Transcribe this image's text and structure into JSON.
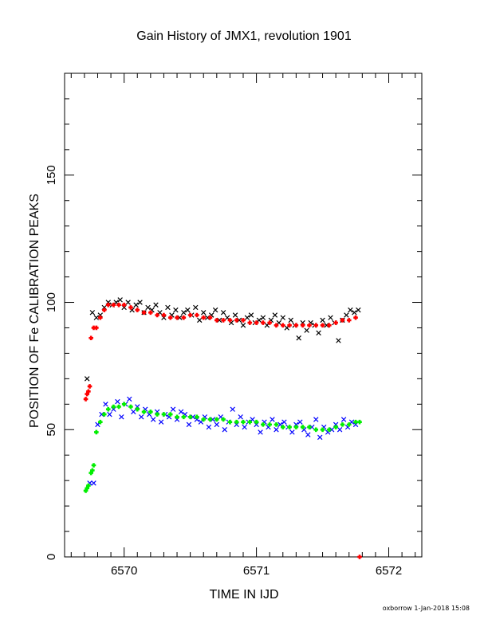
{
  "title": "Gain History of JMX1, revolution 1901",
  "footer": "oxborrow  1-Jan-2018 15:08",
  "chart_data": {
    "type": "scatter",
    "title": "Gain History of JMX1, revolution 1901",
    "xlabel": "TIME IN IJD",
    "ylabel": "POSITION OF Fe CALIBRATION PEAKS",
    "xlim": [
      6569.55,
      6572.25
    ],
    "ylim": [
      0,
      190
    ],
    "x_ticks": [
      6570,
      6571,
      6572
    ],
    "y_ticks": [
      0,
      50,
      100,
      150
    ],
    "grid": false,
    "colors": {
      "upper_raw": "#000000",
      "upper_fit": "#ff0000",
      "lower_raw": "#0000ff",
      "lower_fit": "#00ee00"
    },
    "series": [
      {
        "marker": "x",
        "color": "#000000",
        "x": [
          6569.72,
          6569.76,
          6569.79,
          6569.82,
          6569.85,
          6569.88,
          6569.91,
          6569.94,
          6569.97,
          6570.0,
          6570.03,
          6570.06,
          6570.09,
          6570.12,
          6570.15,
          6570.18,
          6570.21,
          6570.24,
          6570.27,
          6570.3,
          6570.33,
          6570.36,
          6570.39,
          6570.42,
          6570.45,
          6570.48,
          6570.51,
          6570.54,
          6570.57,
          6570.6,
          6570.63,
          6570.66,
          6570.69,
          6570.72,
          6570.75,
          6570.78,
          6570.81,
          6570.84,
          6570.87,
          6570.9,
          6570.93,
          6570.96,
          6570.99,
          6571.02,
          6571.05,
          6571.08,
          6571.11,
          6571.14,
          6571.17,
          6571.2,
          6571.23,
          6571.26,
          6571.29,
          6571.32,
          6571.35,
          6571.38,
          6571.41,
          6571.44,
          6571.47,
          6571.5,
          6571.53,
          6571.56,
          6571.59,
          6571.62,
          6571.65,
          6571.68,
          6571.71,
          6571.74,
          6571.77
        ],
        "y": [
          70,
          96,
          94,
          95,
          98,
          100,
          99,
          100,
          101,
          98,
          100,
          97,
          99,
          100,
          96,
          98,
          97,
          99,
          96,
          94,
          98,
          95,
          97,
          94,
          96,
          97,
          95,
          98,
          93,
          96,
          94,
          95,
          97,
          93,
          96,
          94,
          92,
          95,
          93,
          91,
          94,
          95,
          92,
          93,
          94,
          91,
          93,
          95,
          92,
          94,
          90,
          93,
          91,
          86,
          92,
          89,
          92,
          91,
          88,
          93,
          91,
          94,
          92,
          85,
          93,
          95,
          97,
          96,
          97
        ]
      },
      {
        "marker": "+",
        "color": "#ff0000",
        "x": [
          6569.71,
          6569.72,
          6569.73,
          6569.74,
          6569.75,
          6569.77,
          6569.79,
          6569.82,
          6569.85,
          6569.88,
          6569.92,
          6569.96,
          6570.0,
          6570.05,
          6570.1,
          6570.15,
          6570.2,
          6570.25,
          6570.3,
          6570.35,
          6570.4,
          6570.45,
          6570.5,
          6570.55,
          6570.6,
          6570.65,
          6570.7,
          6570.75,
          6570.8,
          6570.85,
          6570.9,
          6570.95,
          6571.0,
          6571.05,
          6571.1,
          6571.15,
          6571.2,
          6571.25,
          6571.3,
          6571.35,
          6571.4,
          6571.45,
          6571.5,
          6571.55,
          6571.6,
          6571.65,
          6571.7,
          6571.75,
          6571.78
        ],
        "y": [
          62,
          64,
          65,
          67,
          86,
          90,
          90,
          94,
          97,
          99,
          99,
          99,
          99,
          98,
          97,
          96,
          96,
          95,
          95,
          94,
          94,
          94,
          95,
          95,
          94,
          94,
          93,
          93,
          93,
          93,
          93,
          92,
          92,
          92,
          92,
          91,
          91,
          91,
          91,
          91,
          91,
          91,
          91,
          91,
          92,
          93,
          93,
          94,
          0
        ]
      },
      {
        "marker": "x",
        "color": "#0000ff",
        "x": [
          6569.74,
          6569.77,
          6569.8,
          6569.83,
          6569.86,
          6569.89,
          6569.92,
          6569.95,
          6569.98,
          6570.01,
          6570.04,
          6570.07,
          6570.1,
          6570.13,
          6570.16,
          6570.19,
          6570.22,
          6570.25,
          6570.28,
          6570.31,
          6570.34,
          6570.37,
          6570.4,
          6570.43,
          6570.46,
          6570.49,
          6570.52,
          6570.55,
          6570.58,
          6570.61,
          6570.64,
          6570.67,
          6570.7,
          6570.73,
          6570.76,
          6570.79,
          6570.82,
          6570.85,
          6570.88,
          6570.91,
          6570.94,
          6570.97,
          6571.0,
          6571.03,
          6571.06,
          6571.09,
          6571.12,
          6571.15,
          6571.18,
          6571.21,
          6571.24,
          6571.27,
          6571.3,
          6571.33,
          6571.36,
          6571.39,
          6571.42,
          6571.45,
          6571.48,
          6571.51,
          6571.54,
          6571.57,
          6571.6,
          6571.63,
          6571.66,
          6571.69,
          6571.72,
          6571.75
        ],
        "y": [
          29,
          29,
          52,
          56,
          60,
          56,
          58,
          61,
          55,
          60,
          62,
          57,
          59,
          55,
          58,
          56,
          54,
          57,
          53,
          56,
          55,
          58,
          54,
          57,
          56,
          52,
          55,
          54,
          53,
          55,
          51,
          54,
          52,
          55,
          50,
          53,
          58,
          52,
          55,
          51,
          53,
          54,
          52,
          49,
          53,
          51,
          54,
          50,
          52,
          53,
          51,
          49,
          52,
          53,
          50,
          48,
          51,
          54,
          47,
          51,
          49,
          50,
          52,
          50,
          54,
          51,
          53,
          52
        ]
      },
      {
        "marker": "+",
        "color": "#00ee00",
        "x": [
          6569.71,
          6569.72,
          6569.73,
          6569.75,
          6569.76,
          6569.77,
          6569.79,
          6569.82,
          6569.85,
          6569.88,
          6569.92,
          6569.96,
          6570.0,
          6570.05,
          6570.1,
          6570.15,
          6570.2,
          6570.25,
          6570.3,
          6570.35,
          6570.4,
          6570.45,
          6570.5,
          6570.55,
          6570.6,
          6570.65,
          6570.7,
          6570.75,
          6570.8,
          6570.85,
          6570.9,
          6570.95,
          6571.0,
          6571.05,
          6571.1,
          6571.15,
          6571.2,
          6571.25,
          6571.3,
          6571.35,
          6571.4,
          6571.45,
          6571.5,
          6571.55,
          6571.6,
          6571.65,
          6571.7,
          6571.75,
          6571.78
        ],
        "y": [
          26,
          27,
          28,
          33,
          34,
          36,
          49,
          53,
          56,
          58,
          59,
          59,
          60,
          59,
          58,
          57,
          57,
          56,
          56,
          56,
          55,
          55,
          55,
          55,
          54,
          54,
          54,
          54,
          53,
          53,
          53,
          53,
          53,
          52,
          52,
          52,
          51,
          51,
          51,
          51,
          51,
          50,
          50,
          50,
          51,
          52,
          52,
          53,
          53
        ]
      }
    ]
  }
}
